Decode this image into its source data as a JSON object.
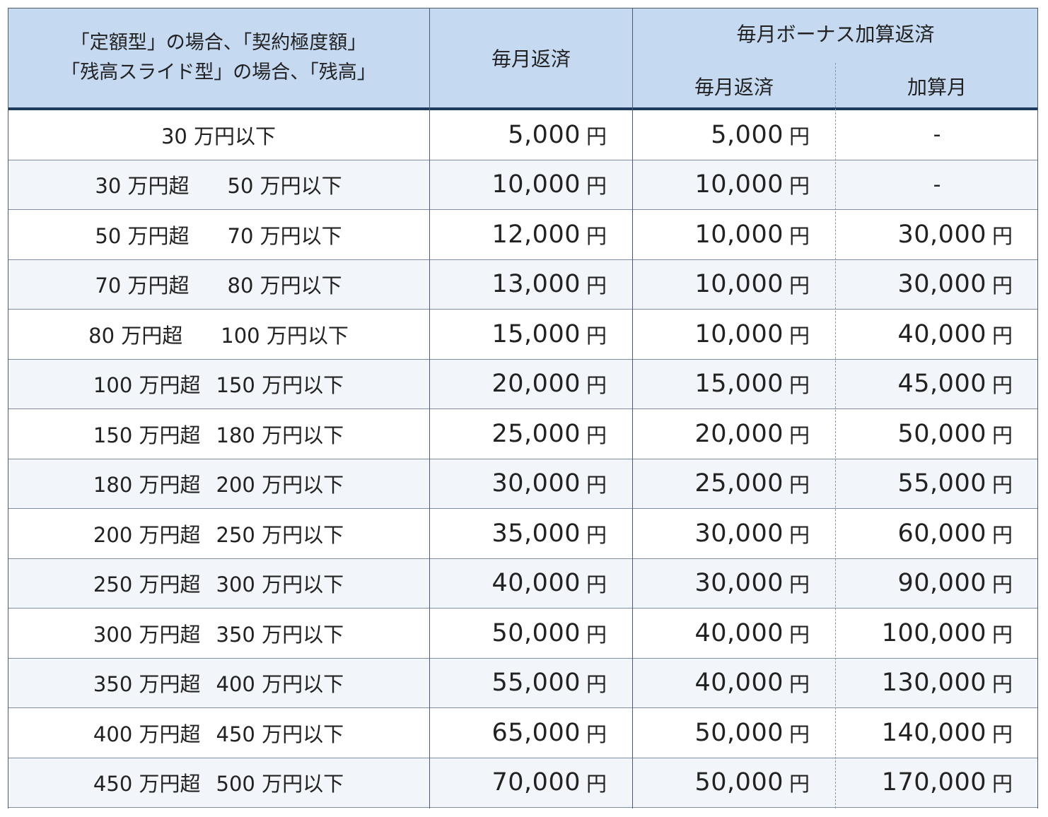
{
  "header": {
    "range_label_line1": "「定額型」の場合、「契約極度額」",
    "range_label_line2": "「残高スライド型」の場合、「残高」",
    "monthly_label": "毎月返済",
    "bonus_group_label": "毎月ボーナス加算返済",
    "bonus_monthly_label": "毎月返済",
    "bonus_add_label": "加算月"
  },
  "colors": {
    "header_bg": "#c5d9f1",
    "alt_row_bg": "#f2f6fa",
    "header_rule": "#1f3a5f"
  },
  "rows": [
    {
      "from": "30 万円以下",
      "to": "",
      "monthly": "5,000",
      "bonus_monthly": "5,000",
      "bonus_add": "-"
    },
    {
      "from": "30 万円超",
      "to": "50 万円以下",
      "monthly": "10,000",
      "bonus_monthly": "10,000",
      "bonus_add": "-"
    },
    {
      "from": "50 万円超",
      "to": "70 万円以下",
      "monthly": "12,000",
      "bonus_monthly": "10,000",
      "bonus_add": "30,000"
    },
    {
      "from": "70 万円超",
      "to": "80 万円以下",
      "monthly": "13,000",
      "bonus_monthly": "10,000",
      "bonus_add": "30,000"
    },
    {
      "from": "80 万円超",
      "to": "100 万円以下",
      "monthly": "15,000",
      "bonus_monthly": "10,000",
      "bonus_add": "40,000"
    },
    {
      "from": "100 万円超",
      "to": "150 万円以下",
      "monthly": "20,000",
      "bonus_monthly": "15,000",
      "bonus_add": "45,000"
    },
    {
      "from": "150 万円超",
      "to": "180 万円以下",
      "monthly": "25,000",
      "bonus_monthly": "20,000",
      "bonus_add": "50,000"
    },
    {
      "from": "180 万円超",
      "to": "200 万円以下",
      "monthly": "30,000",
      "bonus_monthly": "25,000",
      "bonus_add": "55,000"
    },
    {
      "from": "200 万円超",
      "to": "250 万円以下",
      "monthly": "35,000",
      "bonus_monthly": "30,000",
      "bonus_add": "60,000"
    },
    {
      "from": "250 万円超",
      "to": "300 万円以下",
      "monthly": "40,000",
      "bonus_monthly": "30,000",
      "bonus_add": "90,000"
    },
    {
      "from": "300 万円超",
      "to": "350 万円以下",
      "monthly": "50,000",
      "bonus_monthly": "40,000",
      "bonus_add": "100,000"
    },
    {
      "from": "350 万円超",
      "to": "400 万円以下",
      "monthly": "55,000",
      "bonus_monthly": "40,000",
      "bonus_add": "130,000"
    },
    {
      "from": "400 万円超",
      "to": "450 万円以下",
      "monthly": "65,000",
      "bonus_monthly": "50,000",
      "bonus_add": "140,000"
    },
    {
      "from": "450 万円超",
      "to": "500 万円以下",
      "monthly": "70,000",
      "bonus_monthly": "50,000",
      "bonus_add": "170,000"
    }
  ],
  "yen": "円"
}
